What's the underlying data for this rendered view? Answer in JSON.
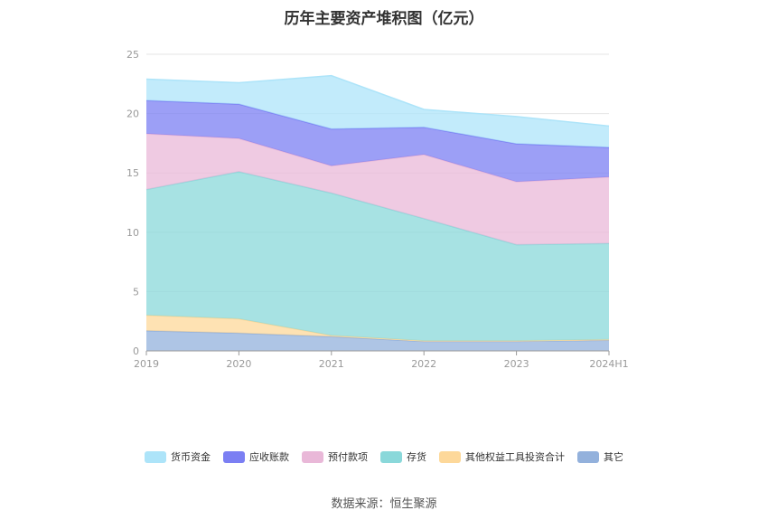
{
  "title": "历年主要资产堆积图（亿元）",
  "source": "数据来源：恒生聚源",
  "chart_data": {
    "type": "area",
    "stacked": true,
    "categories": [
      "2019",
      "2020",
      "2021",
      "2022",
      "2023",
      "2024H1"
    ],
    "ylim": [
      0,
      25
    ],
    "yticks": [
      0,
      5,
      10,
      15,
      20,
      25
    ],
    "grid": true,
    "legend_position": "bottom",
    "series": [
      {
        "name": "其它",
        "color": "#93b1dc",
        "values": [
          1.7,
          1.5,
          1.2,
          0.8,
          0.8,
          0.9
        ]
      },
      {
        "name": "其他权益工具投资合计",
        "color": "#fdd89a",
        "values": [
          1.3,
          1.2,
          0.1,
          0.05,
          0.05,
          0.05
        ]
      },
      {
        "name": "存货",
        "color": "#8ad8da",
        "values": [
          10.6,
          12.4,
          12.0,
          10.3,
          8.1,
          8.1
        ]
      },
      {
        "name": "预付款项",
        "color": "#e9b8d8",
        "values": [
          4.7,
          2.8,
          2.3,
          5.4,
          5.3,
          5.6
        ]
      },
      {
        "name": "应收账款",
        "color": "#7b7ff3",
        "values": [
          2.8,
          2.9,
          3.1,
          2.3,
          3.2,
          2.5
        ]
      },
      {
        "name": "货币资金",
        "color": "#ade4f9",
        "values": [
          1.8,
          1.8,
          4.5,
          1.5,
          2.3,
          1.8
        ]
      }
    ]
  }
}
